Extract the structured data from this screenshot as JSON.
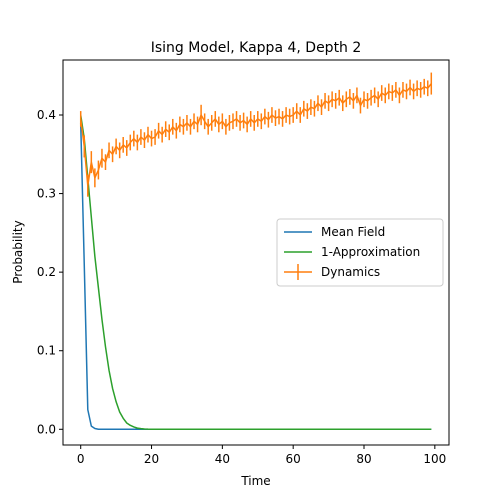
{
  "chart_data": {
    "type": "line",
    "title": "Ising Model, Kappa 4, Depth 2",
    "xlabel": "Time",
    "ylabel": "Probability",
    "xlim": [
      -5,
      104
    ],
    "ylim": [
      -0.02,
      0.47
    ],
    "xticks": [
      0,
      20,
      40,
      60,
      80,
      100
    ],
    "yticks": [
      0.0,
      0.1,
      0.2,
      0.3,
      0.4
    ],
    "ytick_labels": [
      "0.0",
      "0.1",
      "0.2",
      "0.3",
      "0.4"
    ],
    "grid": false,
    "legend_position": "center-right",
    "series": [
      {
        "name": "Mean Field",
        "color": "#1f77b4",
        "x": [
          0,
          1,
          2,
          3,
          4,
          5,
          6,
          7,
          8,
          9,
          10,
          15,
          20,
          30,
          40,
          50,
          60,
          70,
          80,
          90,
          99
        ],
        "y": [
          0.39,
          0.21,
          0.025,
          0.004,
          0.001,
          0.0,
          0.0,
          0.0,
          0.0,
          0.0,
          0.0,
          0.0,
          0.0,
          0.0,
          0.0,
          0.0,
          0.0,
          0.0,
          0.0,
          0.0,
          0.0
        ]
      },
      {
        "name": "1-Approximation",
        "color": "#2ca02c",
        "x": [
          0,
          1,
          2,
          3,
          4,
          5,
          6,
          7,
          8,
          9,
          10,
          11,
          12,
          13,
          14,
          15,
          16,
          17,
          18,
          19,
          20,
          22,
          25,
          30,
          40,
          50,
          60,
          70,
          80,
          90,
          99
        ],
        "y": [
          0.4,
          0.37,
          0.32,
          0.27,
          0.22,
          0.18,
          0.14,
          0.105,
          0.075,
          0.052,
          0.035,
          0.022,
          0.014,
          0.008,
          0.005,
          0.003,
          0.0015,
          0.0008,
          0.0004,
          0.0002,
          0.0001,
          0.0,
          0.0,
          0.0,
          0.0,
          0.0,
          0.0,
          0.0,
          0.0,
          0.0,
          0.0
        ]
      },
      {
        "name": "Dynamics",
        "color": "#ff7f0e",
        "errorbars": true,
        "x": [
          0,
          1,
          2,
          3,
          4,
          5,
          6,
          7,
          8,
          9,
          10,
          11,
          12,
          13,
          14,
          15,
          16,
          17,
          18,
          19,
          20,
          21,
          22,
          23,
          24,
          25,
          26,
          27,
          28,
          29,
          30,
          31,
          32,
          33,
          34,
          35,
          36,
          37,
          38,
          39,
          40,
          41,
          42,
          43,
          44,
          45,
          46,
          47,
          48,
          49,
          50,
          51,
          52,
          53,
          54,
          55,
          56,
          57,
          58,
          59,
          60,
          61,
          62,
          63,
          64,
          65,
          66,
          67,
          68,
          69,
          70,
          71,
          72,
          73,
          74,
          75,
          76,
          77,
          78,
          79,
          80,
          81,
          82,
          83,
          84,
          85,
          86,
          87,
          88,
          89,
          90,
          91,
          92,
          93,
          94,
          95,
          96,
          97,
          98,
          99
        ],
        "y": [
          0.395,
          0.36,
          0.31,
          0.34,
          0.32,
          0.33,
          0.345,
          0.34,
          0.355,
          0.35,
          0.36,
          0.355,
          0.362,
          0.358,
          0.365,
          0.37,
          0.365,
          0.372,
          0.368,
          0.375,
          0.37,
          0.372,
          0.38,
          0.375,
          0.382,
          0.378,
          0.385,
          0.38,
          0.388,
          0.385,
          0.39,
          0.385,
          0.392,
          0.388,
          0.4,
          0.392,
          0.385,
          0.39,
          0.395,
          0.388,
          0.392,
          0.385,
          0.39,
          0.392,
          0.395,
          0.39,
          0.393,
          0.388,
          0.395,
          0.39,
          0.395,
          0.392,
          0.398,
          0.394,
          0.4,
          0.396,
          0.398,
          0.395,
          0.4,
          0.398,
          0.4,
          0.405,
          0.4,
          0.408,
          0.405,
          0.41,
          0.408,
          0.415,
          0.41,
          0.418,
          0.415,
          0.42,
          0.418,
          0.422,
          0.415,
          0.42,
          0.423,
          0.418,
          0.425,
          0.412,
          0.42,
          0.418,
          0.422,
          0.425,
          0.42,
          0.428,
          0.425,
          0.43,
          0.428,
          0.432,
          0.425,
          0.432,
          0.43,
          0.435,
          0.43,
          0.434,
          0.432,
          0.436,
          0.434,
          0.44
        ],
        "yerr": [
          0.01,
          0.014,
          0.014,
          0.014,
          0.012,
          0.012,
          0.012,
          0.01,
          0.01,
          0.01,
          0.01,
          0.01,
          0.01,
          0.01,
          0.01,
          0.01,
          0.01,
          0.01,
          0.01,
          0.01,
          0.01,
          0.01,
          0.01,
          0.01,
          0.01,
          0.01,
          0.01,
          0.01,
          0.01,
          0.01,
          0.01,
          0.01,
          0.01,
          0.01,
          0.013,
          0.01,
          0.01,
          0.01,
          0.01,
          0.01,
          0.01,
          0.01,
          0.01,
          0.01,
          0.01,
          0.01,
          0.01,
          0.01,
          0.01,
          0.01,
          0.01,
          0.01,
          0.01,
          0.01,
          0.01,
          0.01,
          0.01,
          0.01,
          0.01,
          0.01,
          0.01,
          0.01,
          0.01,
          0.01,
          0.01,
          0.01,
          0.01,
          0.01,
          0.01,
          0.01,
          0.01,
          0.01,
          0.01,
          0.01,
          0.01,
          0.01,
          0.01,
          0.01,
          0.01,
          0.01,
          0.01,
          0.01,
          0.01,
          0.01,
          0.01,
          0.01,
          0.01,
          0.01,
          0.01,
          0.01,
          0.01,
          0.01,
          0.01,
          0.01,
          0.01,
          0.01,
          0.01,
          0.01,
          0.01,
          0.014
        ]
      }
    ]
  }
}
